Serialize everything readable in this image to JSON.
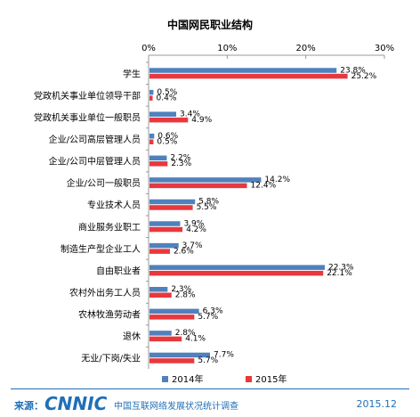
{
  "chart_data": {
    "type": "bar",
    "orientation": "horizontal",
    "title": "中国网民职业结构",
    "categories": [
      "学生",
      "党政机关事业单位领导干部",
      "党政机关事业单位一般职员",
      "企业/公司高层管理人员",
      "企业/公司中层管理人员",
      "企业/公司一般职员",
      "专业技术人员",
      "商业服务业职工",
      "制造生产型企业工人",
      "自由职业者",
      "农村外出务工人员",
      "农林牧渔劳动者",
      "退休",
      "无业/下岗/失业"
    ],
    "series": [
      {
        "name": "2014年",
        "color": "#4f81bd",
        "values": [
          23.8,
          0.5,
          3.4,
          0.6,
          2.2,
          14.2,
          5.8,
          3.9,
          3.7,
          22.3,
          2.3,
          6.3,
          2.8,
          7.7
        ],
        "labels": [
          "23.8%",
          "0.5%",
          "3.4%",
          "0.6%",
          "2.2%",
          "14.2%",
          "5.8%",
          "3.9%",
          "3.7%",
          "22.3%",
          "2.3%",
          "6.3%",
          "2.8%",
          "7.7%"
        ]
      },
      {
        "name": "2015年",
        "color": "#e8383d",
        "values": [
          25.2,
          0.4,
          4.9,
          0.5,
          2.3,
          12.4,
          5.5,
          4.2,
          2.6,
          22.1,
          2.8,
          5.7,
          4.1,
          5.7
        ],
        "labels": [
          "25.2%",
          "0.4%",
          "4.9%",
          "0.5%",
          "2.3%",
          "12.4%",
          "5.5%",
          "4.2%",
          "2.6%",
          "22.1%",
          "2.8%",
          "5.7%",
          "4.1%",
          "5.7%"
        ]
      }
    ],
    "xlim": [
      0,
      30
    ],
    "xticks": [
      0,
      10,
      20,
      30
    ],
    "xtick_labels": [
      "0%",
      "10%",
      "20%",
      "30%"
    ],
    "axis_position": "top",
    "legend": "bottom",
    "grid": false
  },
  "footer": {
    "source_label": "来源：",
    "logo_text": "CNNIC",
    "report_name": "中国互联网络发展状况统计调查",
    "date": "2015.12"
  }
}
